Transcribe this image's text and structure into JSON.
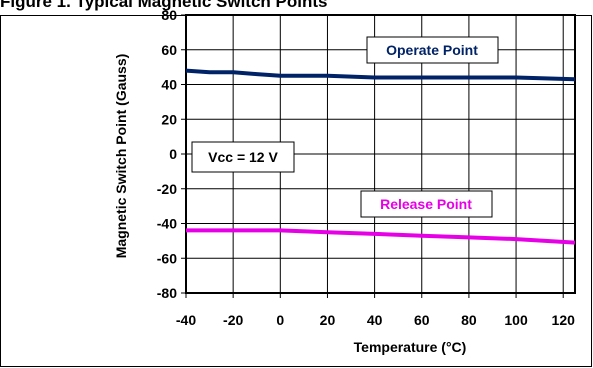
{
  "page_title": "Figure 1. Typical Magnetic Switch Points",
  "chart_data": {
    "type": "line",
    "title": "",
    "xlabel": "Temperature (°C)",
    "ylabel": "Magnetic Switch Point (Gauss)",
    "xlim": [
      -40,
      125
    ],
    "ylim": [
      -80,
      80
    ],
    "x_ticks": [
      -40,
      -20,
      0,
      20,
      40,
      60,
      80,
      100,
      120
    ],
    "y_ticks": [
      80,
      60,
      40,
      20,
      0,
      -20,
      -40,
      -60,
      -80
    ],
    "grid": true,
    "series": [
      {
        "name": "Operate Point",
        "color": "#002266",
        "x": [
          -40,
          -30,
          -20,
          -10,
          0,
          20,
          40,
          60,
          80,
          100,
          125
        ],
        "y": [
          48,
          47,
          47,
          46,
          45,
          45,
          44,
          44,
          44,
          44,
          43
        ]
      },
      {
        "name": "Release Point",
        "color": "#e600e6",
        "x": [
          -40,
          -20,
          0,
          20,
          40,
          60,
          80,
          100,
          125
        ],
        "y": [
          -44,
          -44,
          -44,
          -45,
          -46,
          -47,
          -48,
          -49,
          -51
        ]
      }
    ],
    "annotations": [
      {
        "text": "Vcc = 12 V"
      }
    ]
  }
}
